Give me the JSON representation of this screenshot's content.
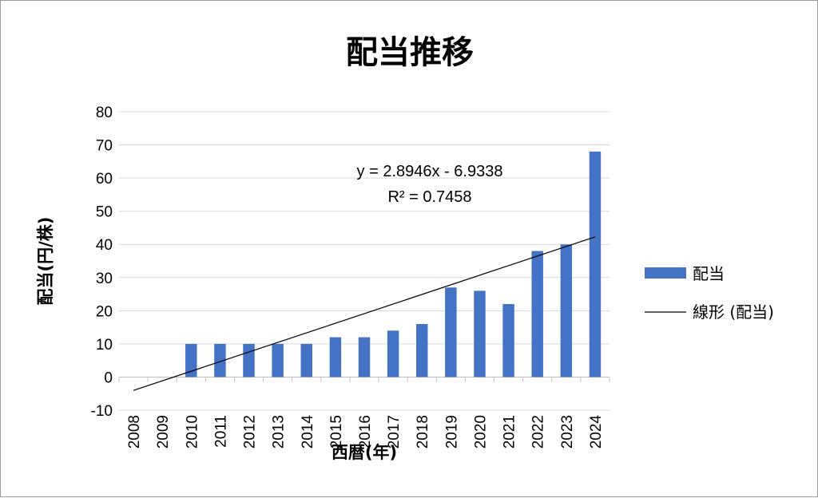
{
  "chart_data": {
    "type": "bar",
    "title": "配当推移",
    "xlabel": "西暦(年)",
    "ylabel": "配当(円/株)",
    "categories": [
      "2008",
      "2009",
      "2010",
      "2011",
      "2012",
      "2013",
      "2014",
      "2015",
      "2016",
      "2017",
      "2018",
      "2019",
      "2020",
      "2021",
      "2022",
      "2023",
      "2024"
    ],
    "series": [
      {
        "name": "配当",
        "values": [
          0,
          0,
          10,
          10,
          10,
          10,
          10,
          12,
          12,
          14,
          16,
          27,
          26,
          22,
          38,
          40,
          68
        ],
        "color": "#4472C4"
      }
    ],
    "trendline": {
      "name": "線形 (配当)",
      "type": "linear",
      "slope": 2.8946,
      "intercept": -6.9338,
      "equation": "y = 2.8946x - 6.9338",
      "r_squared": "R² = 0.7458",
      "color": "#000000"
    },
    "ylim": [
      -10,
      80
    ],
    "yticks": [
      "-10",
      "0",
      "10",
      "20",
      "30",
      "40",
      "50",
      "60",
      "70",
      "80"
    ],
    "grid": true,
    "legend_position": "right"
  }
}
